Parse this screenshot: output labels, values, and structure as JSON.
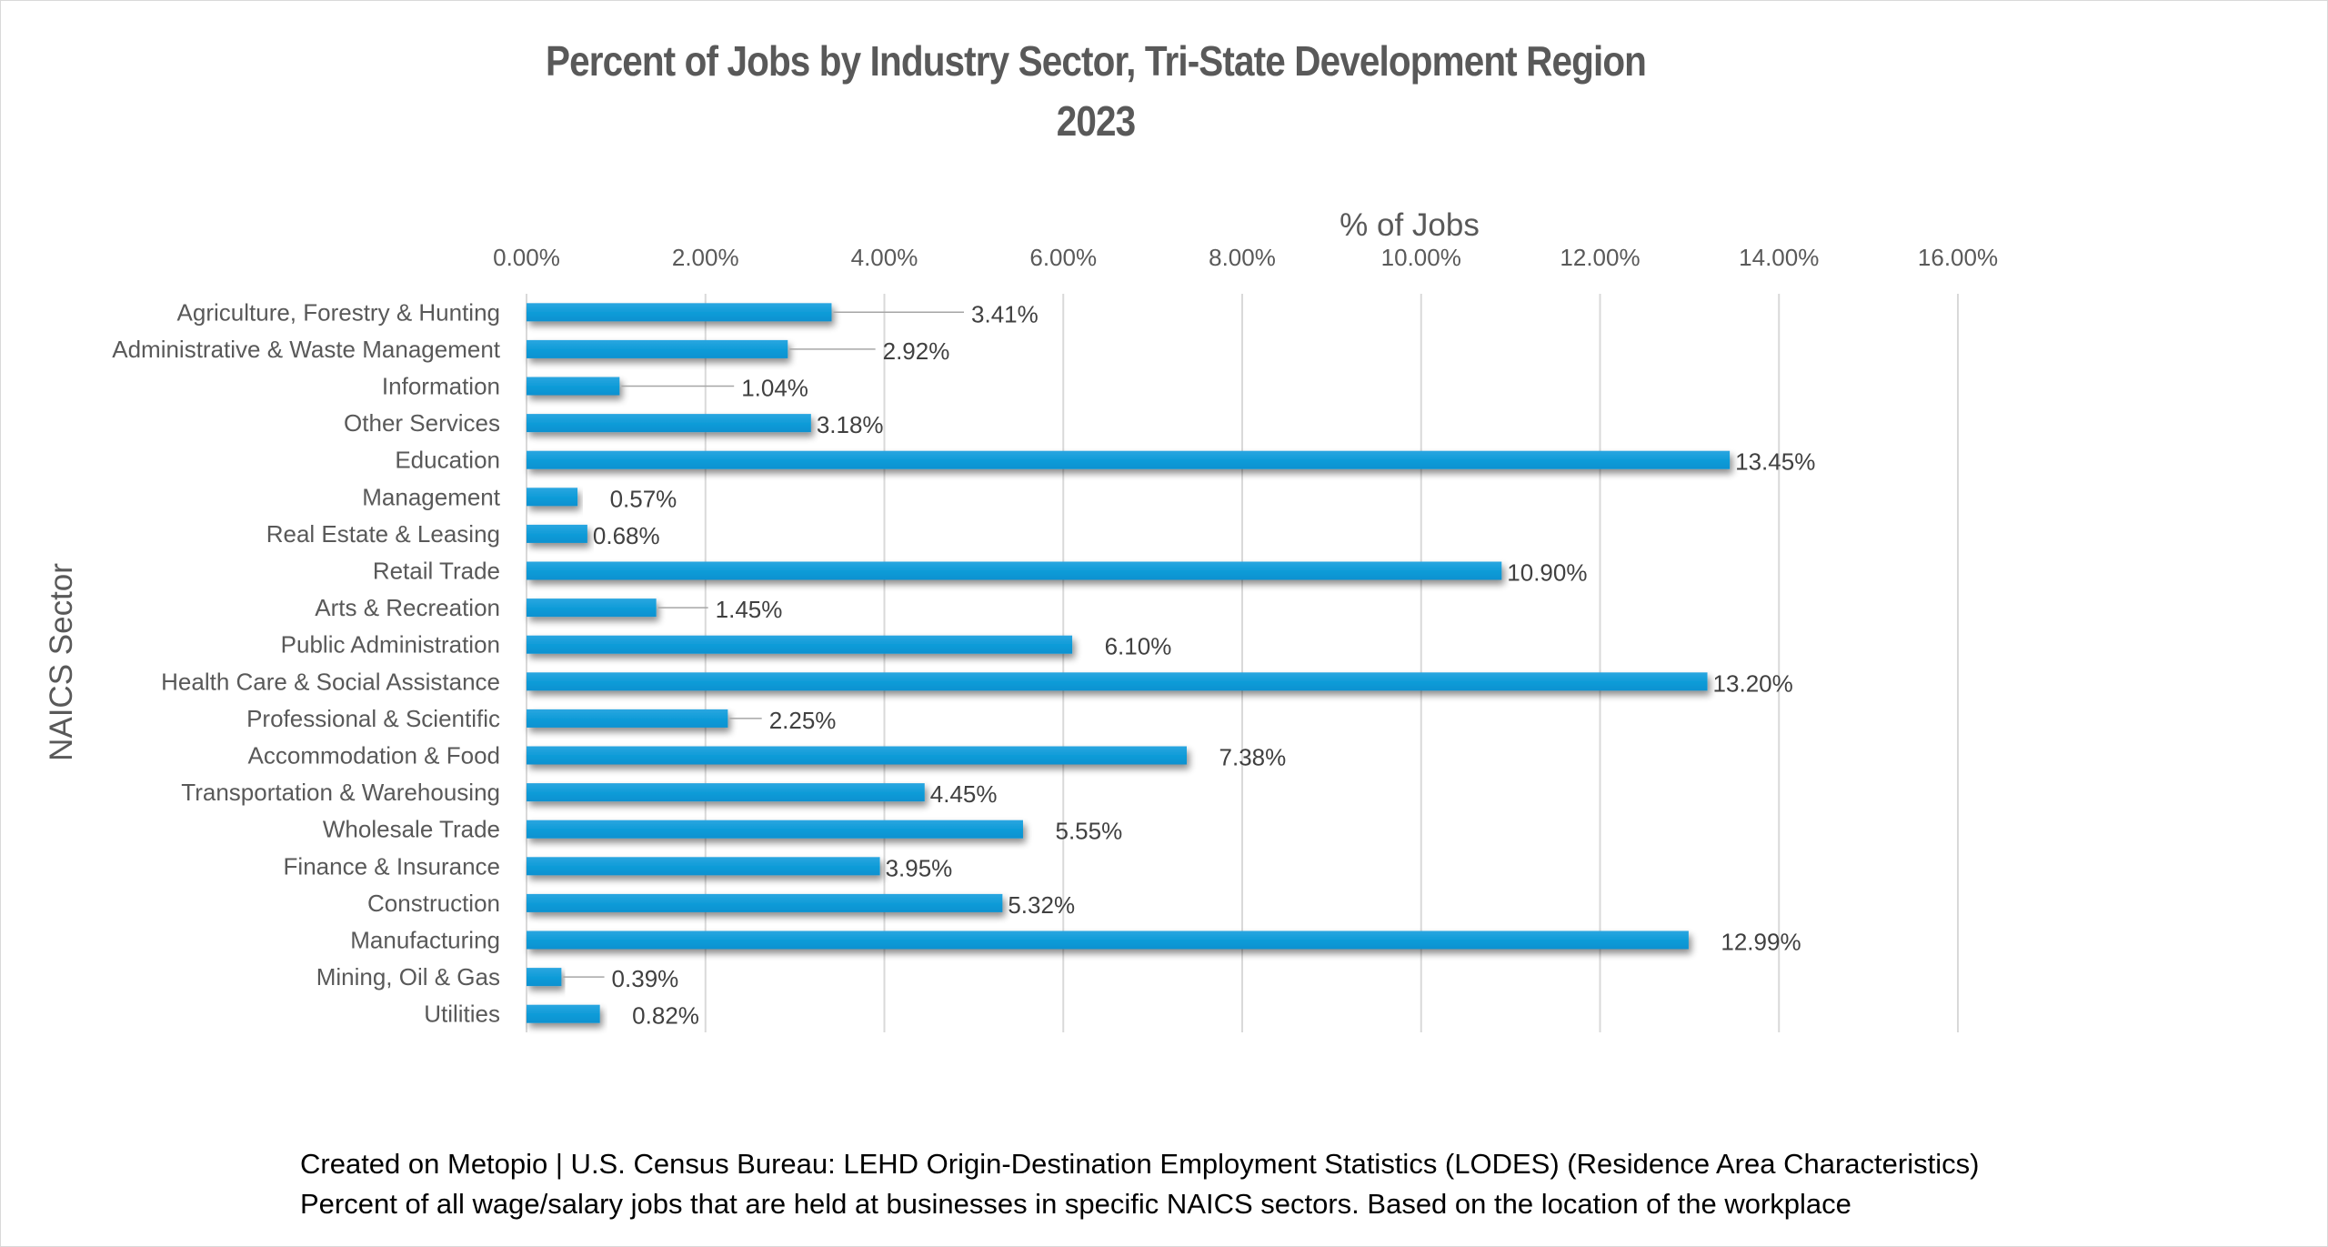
{
  "chart_data": {
    "type": "bar",
    "orientation": "horizontal",
    "title": "Percent of Jobs by Industry Sector, Tri-State Development Region",
    "subtitle": "2023",
    "xlabel": "% of Jobs",
    "ylabel": "NAICS Sector",
    "xlim": [
      0,
      16
    ],
    "x_ticks": [
      0,
      2,
      4,
      6,
      8,
      10,
      12,
      14,
      16
    ],
    "x_tick_labels": [
      "0.00%",
      "2.00%",
      "4.00%",
      "6.00%",
      "8.00%",
      "10.00%",
      "12.00%",
      "14.00%",
      "16.00%"
    ],
    "x_axis_position": "top",
    "grid": true,
    "legend": "none",
    "bar_color": "#0F9BD7",
    "categories": [
      "Agriculture, Forestry & Hunting",
      "Administrative & Waste Management",
      "Information",
      "Other Services",
      "Education",
      "Management",
      "Real Estate & Leasing",
      "Retail Trade",
      "Arts & Recreation",
      "Public Administration",
      "Health Care & Social Assistance",
      "Professional & Scientific",
      "Accommodation & Food",
      "Transportation & Warehousing",
      "Wholesale Trade",
      "Finance & Insurance",
      "Construction",
      "Manufacturing",
      "Mining, Oil & Gas",
      "Utilities"
    ],
    "values": [
      3.41,
      2.92,
      1.04,
      3.18,
      13.45,
      0.57,
      0.68,
      10.9,
      1.45,
      6.1,
      13.2,
      2.25,
      7.38,
      4.45,
      5.55,
      3.95,
      5.32,
      12.99,
      0.39,
      0.82
    ],
    "data_labels": [
      "3.41%",
      "2.92%",
      "1.04%",
      "3.18%",
      "13.45%",
      "0.57%",
      "0.68%",
      "10.90%",
      "1.45%",
      "6.10%",
      "13.20%",
      "2.25%",
      "7.38%",
      "4.45%",
      "5.55%",
      "3.95%",
      "5.32%",
      "12.99%",
      "0.39%",
      "0.82%"
    ],
    "label_offsets": [
      1.5,
      1.0,
      1.3,
      0,
      0,
      0.3,
      0,
      0,
      0.6,
      0.3,
      0,
      0.4,
      0.3,
      0,
      0.3,
      0,
      0,
      0.3,
      0.5,
      0.3
    ]
  },
  "footer": {
    "source": "Created on Metopio | U.S. Census Bureau: LEHD Origin-Destination Employment Statistics (LODES) (Residence Area Characteristics)",
    "note": "Percent of all wage/salary jobs that are held at businesses in specific NAICS sectors. Based on the location of the workplace"
  }
}
